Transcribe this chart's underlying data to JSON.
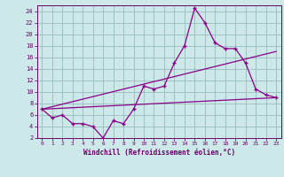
{
  "xlabel": "Windchill (Refroidissement éolien,°C)",
  "background_color": "#cce8e8",
  "grid_color": "#99bbbb",
  "line_color": "#880088",
  "spine_color": "#660066",
  "xlim": [
    -0.5,
    23.5
  ],
  "ylim": [
    2,
    25
  ],
  "yticks": [
    2,
    4,
    6,
    8,
    10,
    12,
    14,
    16,
    18,
    20,
    22,
    24
  ],
  "xticks": [
    0,
    1,
    2,
    3,
    4,
    5,
    6,
    7,
    8,
    9,
    10,
    11,
    12,
    13,
    14,
    15,
    16,
    17,
    18,
    19,
    20,
    21,
    22,
    23
  ],
  "series1_x": [
    0,
    1,
    2,
    3,
    4,
    5,
    6,
    7,
    8,
    9,
    10,
    11,
    12,
    13,
    14,
    15,
    16,
    17,
    18,
    19,
    20,
    21,
    22,
    23
  ],
  "series1_y": [
    7,
    5.5,
    6,
    4.5,
    4.5,
    4,
    2,
    5,
    4.5,
    7,
    11,
    10.5,
    11,
    15,
    18,
    24.5,
    22,
    18.5,
    17.5,
    17.5,
    15,
    10.5,
    9.5,
    9
  ],
  "trend1_x": [
    0,
    23
  ],
  "trend1_y": [
    7.0,
    17.0
  ],
  "trend2_x": [
    0,
    23
  ],
  "trend2_y": [
    7.0,
    9.0
  ]
}
